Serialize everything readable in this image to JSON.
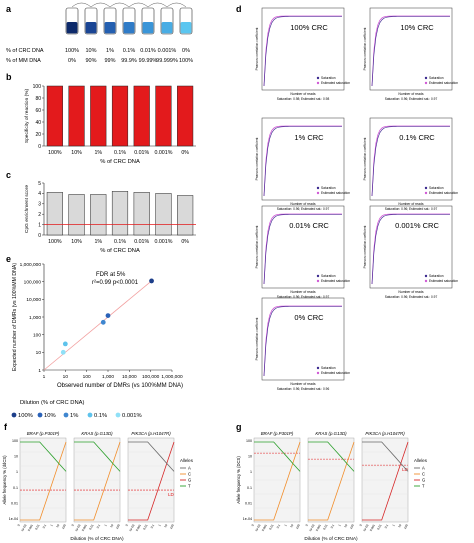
{
  "panel_labels": {
    "a": "a",
    "b": "b",
    "c": "c",
    "d": "d",
    "e": "e",
    "f": "f",
    "g": "g"
  },
  "colors": {
    "red_bar": "#e31a1c",
    "gray_bar": "#d9d9d9",
    "threshold": "#e31a1c",
    "saturation": "#3b2a8f",
    "estimated": "#d05ad5",
    "tube_dark": "#1d3f8a",
    "tube_light": "#5bc6f0",
    "allele_A": "#6a6a6a",
    "allele_C": "#f28e2b",
    "allele_G": "#d62728",
    "allele_T": "#2ca02c"
  },
  "panel_a": {
    "row1_label": "% of CRC DNA",
    "row2_label": "% of MM DNA",
    "crc": [
      "100%",
      "10%",
      "1%",
      "0.1%",
      "0.01%",
      "0.001%",
      "0%"
    ],
    "mm": [
      "0%",
      "90%",
      "99%",
      "99.9%",
      "99.99%",
      "99.999%",
      "100%"
    ],
    "tube_shades": [
      "#0d2a6b",
      "#1a4594",
      "#245fb0",
      "#2f7bc7",
      "#3a95d8",
      "#49ade4",
      "#5bc6f0"
    ]
  },
  "chart_data": [
    {
      "type": "bar",
      "panel": "b",
      "categories": [
        "100%",
        "10%",
        "1%",
        "0.1%",
        "0.01%",
        "0.001%",
        "0%"
      ],
      "values": [
        100,
        100,
        100,
        100,
        100,
        100,
        100
      ],
      "ylabel": "Specificity of reaction (%)",
      "xlabel": "% of CRC DNA",
      "ylim": [
        0,
        100
      ],
      "yticks": [
        "0",
        "20",
        "40",
        "60",
        "80",
        "100"
      ]
    },
    {
      "type": "bar",
      "panel": "c",
      "categories": [
        "100%",
        "10%",
        "1%",
        "0.1%",
        "0.01%",
        "0.001%",
        "0%"
      ],
      "values": [
        4.1,
        3.9,
        3.9,
        4.2,
        4.1,
        4.0,
        3.8
      ],
      "threshold": 1,
      "ylabel": "CpG enrichment score",
      "xlabel": "% of CRC DNA",
      "ylim": [
        0,
        5
      ],
      "yticks": [
        "0",
        "1",
        "2",
        "3",
        "4",
        "5"
      ]
    },
    {
      "type": "scatter",
      "panel": "e",
      "xlabel": "Observed number of DMRs (vs 100%MM DNA)",
      "ylabel": "Expected number of DMRs (vs 100%MM DNA)",
      "xscale": "log",
      "yscale": "log",
      "xlim": [
        1,
        1000000
      ],
      "ylim": [
        1,
        1000000
      ],
      "xticks": [
        "1",
        "10",
        "100",
        "1,000",
        "10,000",
        "100,000",
        "1,000,000"
      ],
      "yticks": [
        "1",
        "10",
        "100",
        "1,000",
        "10,000",
        "100,000",
        "1,000,000"
      ],
      "annotation_line1": "FDR at 5%",
      "annotation_line2": "r²=0.99 p<0.0001",
      "legend_title": "Dilution (% of CRC DNA)",
      "series": [
        {
          "name": "100%",
          "x": 110000,
          "y": 110000,
          "color": "#1d3f8a"
        },
        {
          "name": "10%",
          "x": 1000,
          "y": 1200,
          "color": "#2a62b8"
        },
        {
          "name": "1%",
          "x": 600,
          "y": 500,
          "color": "#3f86cf"
        },
        {
          "name": "0.1%",
          "x": 10,
          "y": 30,
          "color": "#5ec3ec"
        },
        {
          "name": "0.001%",
          "x": 8,
          "y": 10,
          "color": "#8fe0f7"
        }
      ]
    },
    {
      "type": "line",
      "panel": "d",
      "subplots": [
        {
          "label": "100% CRC",
          "stats": "Saturation: 0.98; Estimated sat.: 0.98"
        },
        {
          "label": "10% CRC",
          "stats": "Saturation: 0.96; Estimated sat.: 0.97"
        },
        {
          "label": "1% CRC",
          "stats": "Saturation: 0.96; Estimated sat.: 0.97"
        },
        {
          "label": "0.1% CRC",
          "stats": "Saturation: 0.96; Estimated sat.: 0.97"
        },
        {
          "label": "0.01% CRC",
          "stats": "Saturation: 0.96; Estimated sat.: 0.97"
        },
        {
          "label": "0.001% CRC",
          "stats": "Saturation: 0.96; Estimated sat.: 0.97"
        },
        {
          "label": "0% CRC",
          "stats": "Saturation: 0.96; Estimated sat.: 0.96"
        }
      ],
      "ylabel": "Pearson correlation coefficient",
      "xlabel": "Number of reads",
      "legend": [
        "Saturation",
        "Estimated saturation"
      ]
    }
  ],
  "panel_f": {
    "ylabel": "Allele frequency % (ddCS)",
    "xlabel": "Dilution (% of CRC DNA)",
    "titles": [
      "BRAF (p.P301P)",
      "KRAS (p.G13D)",
      "PIK3CA (p.H1047R)"
    ],
    "yticks": [
      "100",
      "10",
      "1",
      "0.1",
      "0.01",
      "1e-04"
    ],
    "xticks": [
      "0",
      "1e-03",
      "0.001",
      "0.01",
      "0.1",
      "1",
      "10",
      "100"
    ],
    "lod_label": "LD",
    "legend_title": "Alleles",
    "legend": [
      "A",
      "C",
      "G",
      "T"
    ]
  },
  "panel_g": {
    "ylabel": "Allele frequency % (DCS)",
    "xlabel": "Dilution (% of CRC DNA)",
    "titles": [
      "BRAF (p.P301P)",
      "KRAS (p.G13D)",
      "PIK3CA (p.H1047R)"
    ],
    "yticks": [
      "100",
      "10",
      "1",
      "0.1",
      "0.01",
      "1e-04"
    ],
    "xticks": [
      "0",
      "1e-03",
      "0.001",
      "0.01",
      "0.1",
      "1",
      "10",
      "100"
    ],
    "lod_label": "LD",
    "legend_title": "Alleles",
    "legend": [
      "A",
      "C",
      "G",
      "T"
    ]
  }
}
